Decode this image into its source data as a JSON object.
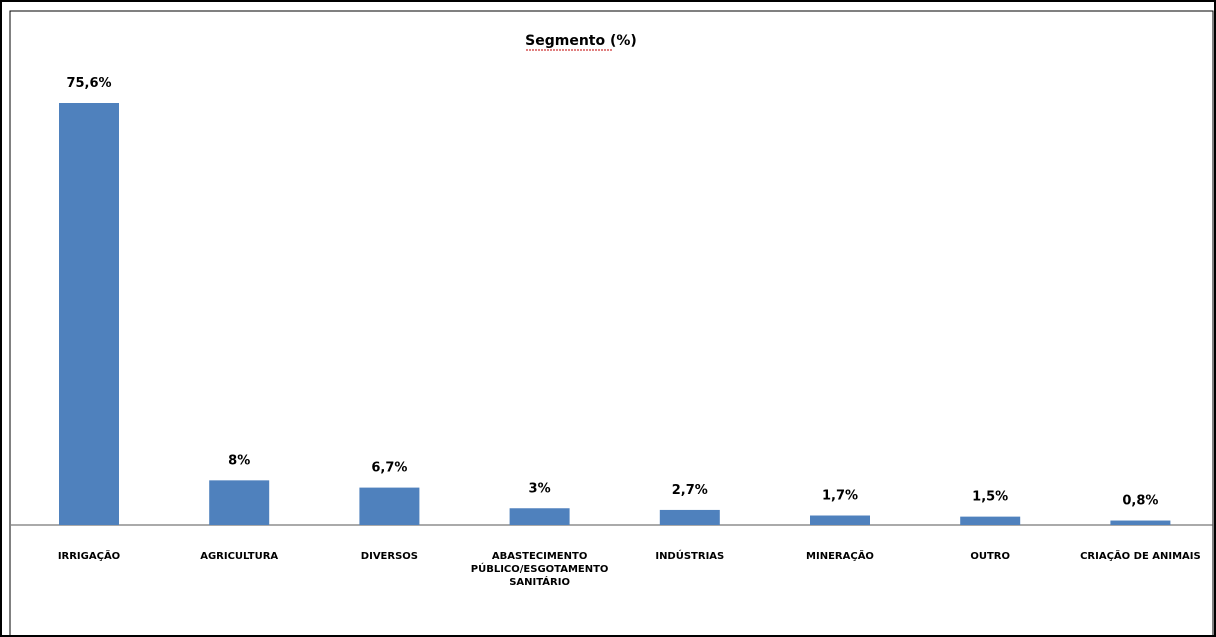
{
  "chart_data": {
    "type": "bar",
    "title": "Segmento (%)",
    "categories": [
      "IRRIGAÇÃO",
      "AGRICULTURA",
      "DIVERSOS",
      "ABASTECIMENTO PÚBLICO/ESGOTAMENTO SANITÁRIO",
      "INDÚSTRIAS",
      "MINERAÇÃO",
      "OUTRO",
      "CRIAÇÃO DE ANIMAIS"
    ],
    "category_lines": [
      [
        "IRRIGAÇÃO"
      ],
      [
        "AGRICULTURA"
      ],
      [
        "DIVERSOS"
      ],
      [
        "ABASTECIMENTO",
        "PÚBLICO/ESGOTAMENTO",
        "SANITÁRIO"
      ],
      [
        "INDÚSTRIAS"
      ],
      [
        "MINERAÇÃO"
      ],
      [
        "OUTRO"
      ],
      [
        "CRIAÇÃO DE ANIMAIS"
      ]
    ],
    "values": [
      75.6,
      8,
      6.7,
      3,
      2.7,
      1.7,
      1.5,
      0.8
    ],
    "data_labels": [
      "75,6%",
      "8%",
      "6,7%",
      "3%",
      "2,7%",
      "1,7%",
      "1,5%",
      "0,8%"
    ],
    "xlabel": "",
    "ylabel": "",
    "ylim": [
      0,
      75.6
    ],
    "grid": false,
    "legend": "none",
    "bar_color": "#4f81bd"
  }
}
